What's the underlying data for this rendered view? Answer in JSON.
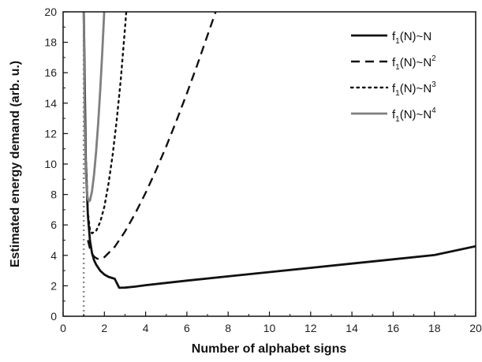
{
  "chart_data": {
    "type": "line",
    "title": "",
    "xlabel": "Number of alphabet signs",
    "ylabel": "Estimated energy demand (arb. u.)",
    "xlim": [
      0,
      20
    ],
    "ylim": [
      0,
      20
    ],
    "xticks": [
      "0",
      "2",
      "4",
      "6",
      "8",
      "10",
      "12",
      "14",
      "16",
      "18",
      "20"
    ],
    "yticks": [
      "0",
      "2",
      "4",
      "6",
      "8",
      "10",
      "12",
      "14",
      "16",
      "18",
      "20"
    ],
    "grid": false,
    "legend_position": "top-right",
    "vertical_reference": {
      "x": 1,
      "color": "#8c8c8c",
      "style": "dotted"
    },
    "series": [
      {
        "name": "f1(N)~N",
        "legend_base": "f",
        "legend_sub": "1",
        "legend_rest": "(N)~N",
        "legend_sup": "",
        "color": "#111111",
        "style": "solid",
        "x": [
          1.0,
          1.1,
          1.2,
          1.3,
          1.4,
          1.5,
          1.6,
          1.8,
          2.0,
          2.2,
          2.5,
          2.72,
          3.0,
          3.5,
          4.0,
          5.0,
          6.0,
          8.0,
          10.0,
          12.0,
          14.0,
          16.0,
          18.0,
          20.0
        ],
        "y": [
          20.0,
          10.1,
          6.63,
          5.0,
          4.16,
          3.69,
          3.4,
          2.99,
          2.74,
          2.59,
          2.46,
          1.87,
          1.88,
          1.95,
          2.04,
          2.19,
          2.34,
          2.62,
          2.9,
          3.18,
          3.46,
          3.74,
          4.02,
          4.6
        ]
      },
      {
        "name": "f1(N)~N2",
        "legend_base": "f",
        "legend_sub": "1",
        "legend_rest": "(N)~N",
        "legend_sup": "2",
        "color": "#111111",
        "style": "dashed",
        "x": [
          1.2,
          1.3,
          1.4,
          1.5,
          1.65,
          1.8,
          2.0,
          2.5,
          3.0,
          3.5,
          4.0,
          4.5,
          5.0,
          5.5,
          6.0,
          6.5,
          7.0,
          7.5,
          7.7
        ],
        "y": [
          5.0,
          4.45,
          4.12,
          3.92,
          3.78,
          3.75,
          3.88,
          4.56,
          5.56,
          6.76,
          8.11,
          9.58,
          11.17,
          12.86,
          14.64,
          16.51,
          18.45,
          20.4,
          21.0
        ]
      },
      {
        "name": "f1(N)~N3",
        "legend_base": "f",
        "legend_sub": "1",
        "legend_rest": "(N)~N",
        "legend_sup": "3",
        "color": "#111111",
        "style": "dotted",
        "x": [
          1.1,
          1.2,
          1.3,
          1.4,
          1.6,
          1.8,
          2.0,
          2.2,
          2.4,
          2.6,
          2.8,
          3.0,
          3.1
        ],
        "y": [
          10.5,
          6.8,
          5.7,
          5.45,
          5.6,
          6.2,
          7.2,
          8.7,
          10.6,
          12.9,
          15.6,
          18.9,
          20.7
        ]
      },
      {
        "name": "f1(N)~N4",
        "legend_base": "f",
        "legend_sub": "1",
        "legend_rest": "(N)~N",
        "legend_sup": "4",
        "color": "#7f7f7f",
        "style": "solid",
        "x": [
          1.0,
          1.05,
          1.1,
          1.15,
          1.2,
          1.25,
          1.3,
          1.4,
          1.5,
          1.6,
          1.7,
          1.8,
          1.9,
          2.0,
          2.1
        ],
        "y": [
          20.0,
          12.5,
          9.4,
          8.1,
          7.7,
          7.55,
          7.6,
          8.2,
          9.3,
          10.8,
          12.7,
          14.9,
          17.4,
          20.2,
          21.0
        ]
      }
    ]
  }
}
